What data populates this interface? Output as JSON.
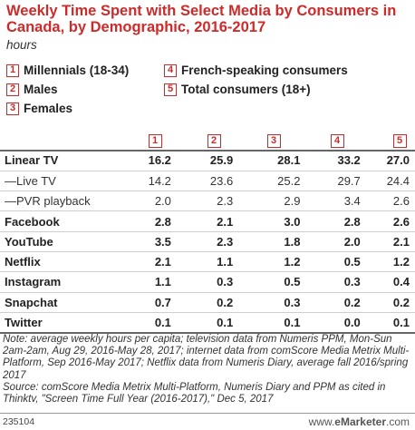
{
  "chart_data": {
    "type": "table",
    "title": "Weekly Time Spent with Select Media by Consumers in Canada, by Demographic, 2016-2017",
    "subtitle": "hours",
    "legend": [
      {
        "num": "1",
        "label": "Millennials (18-34)"
      },
      {
        "num": "2",
        "label": "Males"
      },
      {
        "num": "3",
        "label": "Females"
      },
      {
        "num": "4",
        "label": "French-speaking consumers"
      },
      {
        "num": "5",
        "label": "Total consumers (18+)"
      }
    ],
    "columns": [
      "1",
      "2",
      "3",
      "4",
      "5"
    ],
    "rows": [
      {
        "label": "Linear TV",
        "bold": true,
        "values": [
          "16.2",
          "25.9",
          "28.1",
          "33.2",
          "27.0"
        ]
      },
      {
        "label": "—Live TV",
        "bold": false,
        "values": [
          "14.2",
          "23.6",
          "25.2",
          "29.7",
          "24.4"
        ]
      },
      {
        "label": "—PVR playback",
        "bold": false,
        "values": [
          "2.0",
          "2.3",
          "2.9",
          "3.4",
          "2.6"
        ]
      },
      {
        "label": "Facebook",
        "bold": true,
        "values": [
          "2.8",
          "2.1",
          "3.0",
          "2.8",
          "2.6"
        ]
      },
      {
        "label": "YouTube",
        "bold": true,
        "values": [
          "3.5",
          "2.3",
          "1.8",
          "2.0",
          "2.1"
        ]
      },
      {
        "label": "Netflix",
        "bold": true,
        "values": [
          "2.1",
          "1.1",
          "1.2",
          "0.5",
          "1.2"
        ]
      },
      {
        "label": "Instagram",
        "bold": true,
        "values": [
          "1.1",
          "0.3",
          "0.5",
          "0.3",
          "0.4"
        ]
      },
      {
        "label": "Snapchat",
        "bold": true,
        "values": [
          "0.7",
          "0.2",
          "0.3",
          "0.2",
          "0.2"
        ]
      },
      {
        "label": "Twitter",
        "bold": true,
        "values": [
          "0.1",
          "0.1",
          "0.1",
          "0.0",
          "0.1"
        ]
      }
    ],
    "note": "Note: average weekly hours per capita; television data from Numeris PPM, Mon-Sun 2am-2am, Aug 29, 2016-May 28, 2017; internet data from comScore Media Metrix Multi-Platform, Sep 2016-May 2017; Netflix data from Numeris Diary, average fall 2016/spring 2017",
    "source": "Source: comScore Media Metrix Multi-Platform, Numeris Diary and PPM as cited in Thinktv, \"Screen Time Full Year (2016-2017),\" Dec 5, 2017"
  },
  "footer": {
    "chart_id": "235104",
    "logo_prefix": "www.",
    "logo_brand": "eMarketer",
    "logo_suffix": ".com"
  },
  "colors": {
    "accent": "#cc2b2b"
  }
}
